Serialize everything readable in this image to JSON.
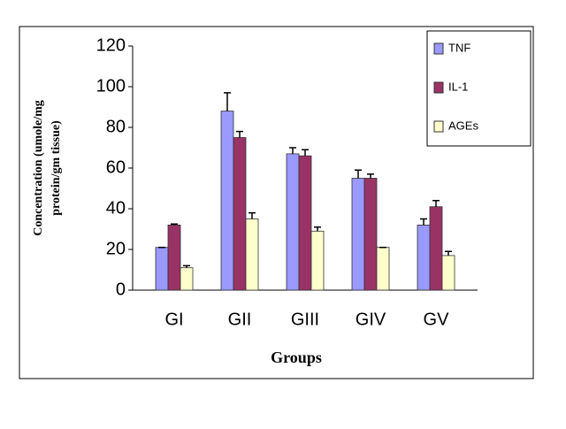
{
  "chart_data": {
    "type": "bar",
    "x_label": "Groups",
    "y_label": [
      "Concentration (umole/mg",
      "protein/gm tissue)"
    ],
    "categories": [
      "GI",
      "GII",
      "GIII",
      "GIV",
      "GV"
    ],
    "series": [
      {
        "name": "TNF",
        "color": "#9999ff",
        "values": [
          21,
          88,
          67,
          55,
          32
        ],
        "errors": [
          0,
          9,
          3,
          4,
          3
        ]
      },
      {
        "name": "IL-1",
        "color": "#993366",
        "values": [
          32,
          75,
          66,
          55,
          41
        ],
        "errors": [
          0.5,
          3,
          3,
          2,
          3
        ]
      },
      {
        "name": "AGEs",
        "color": "#ffffcc",
        "values": [
          11,
          35,
          29,
          21,
          17
        ],
        "errors": [
          1,
          3,
          2,
          0,
          2
        ]
      }
    ],
    "ylim": [
      0,
      120
    ],
    "yticks": [
      0,
      20,
      40,
      60,
      80,
      100,
      120
    ],
    "grid": false,
    "legend": "top-right"
  }
}
